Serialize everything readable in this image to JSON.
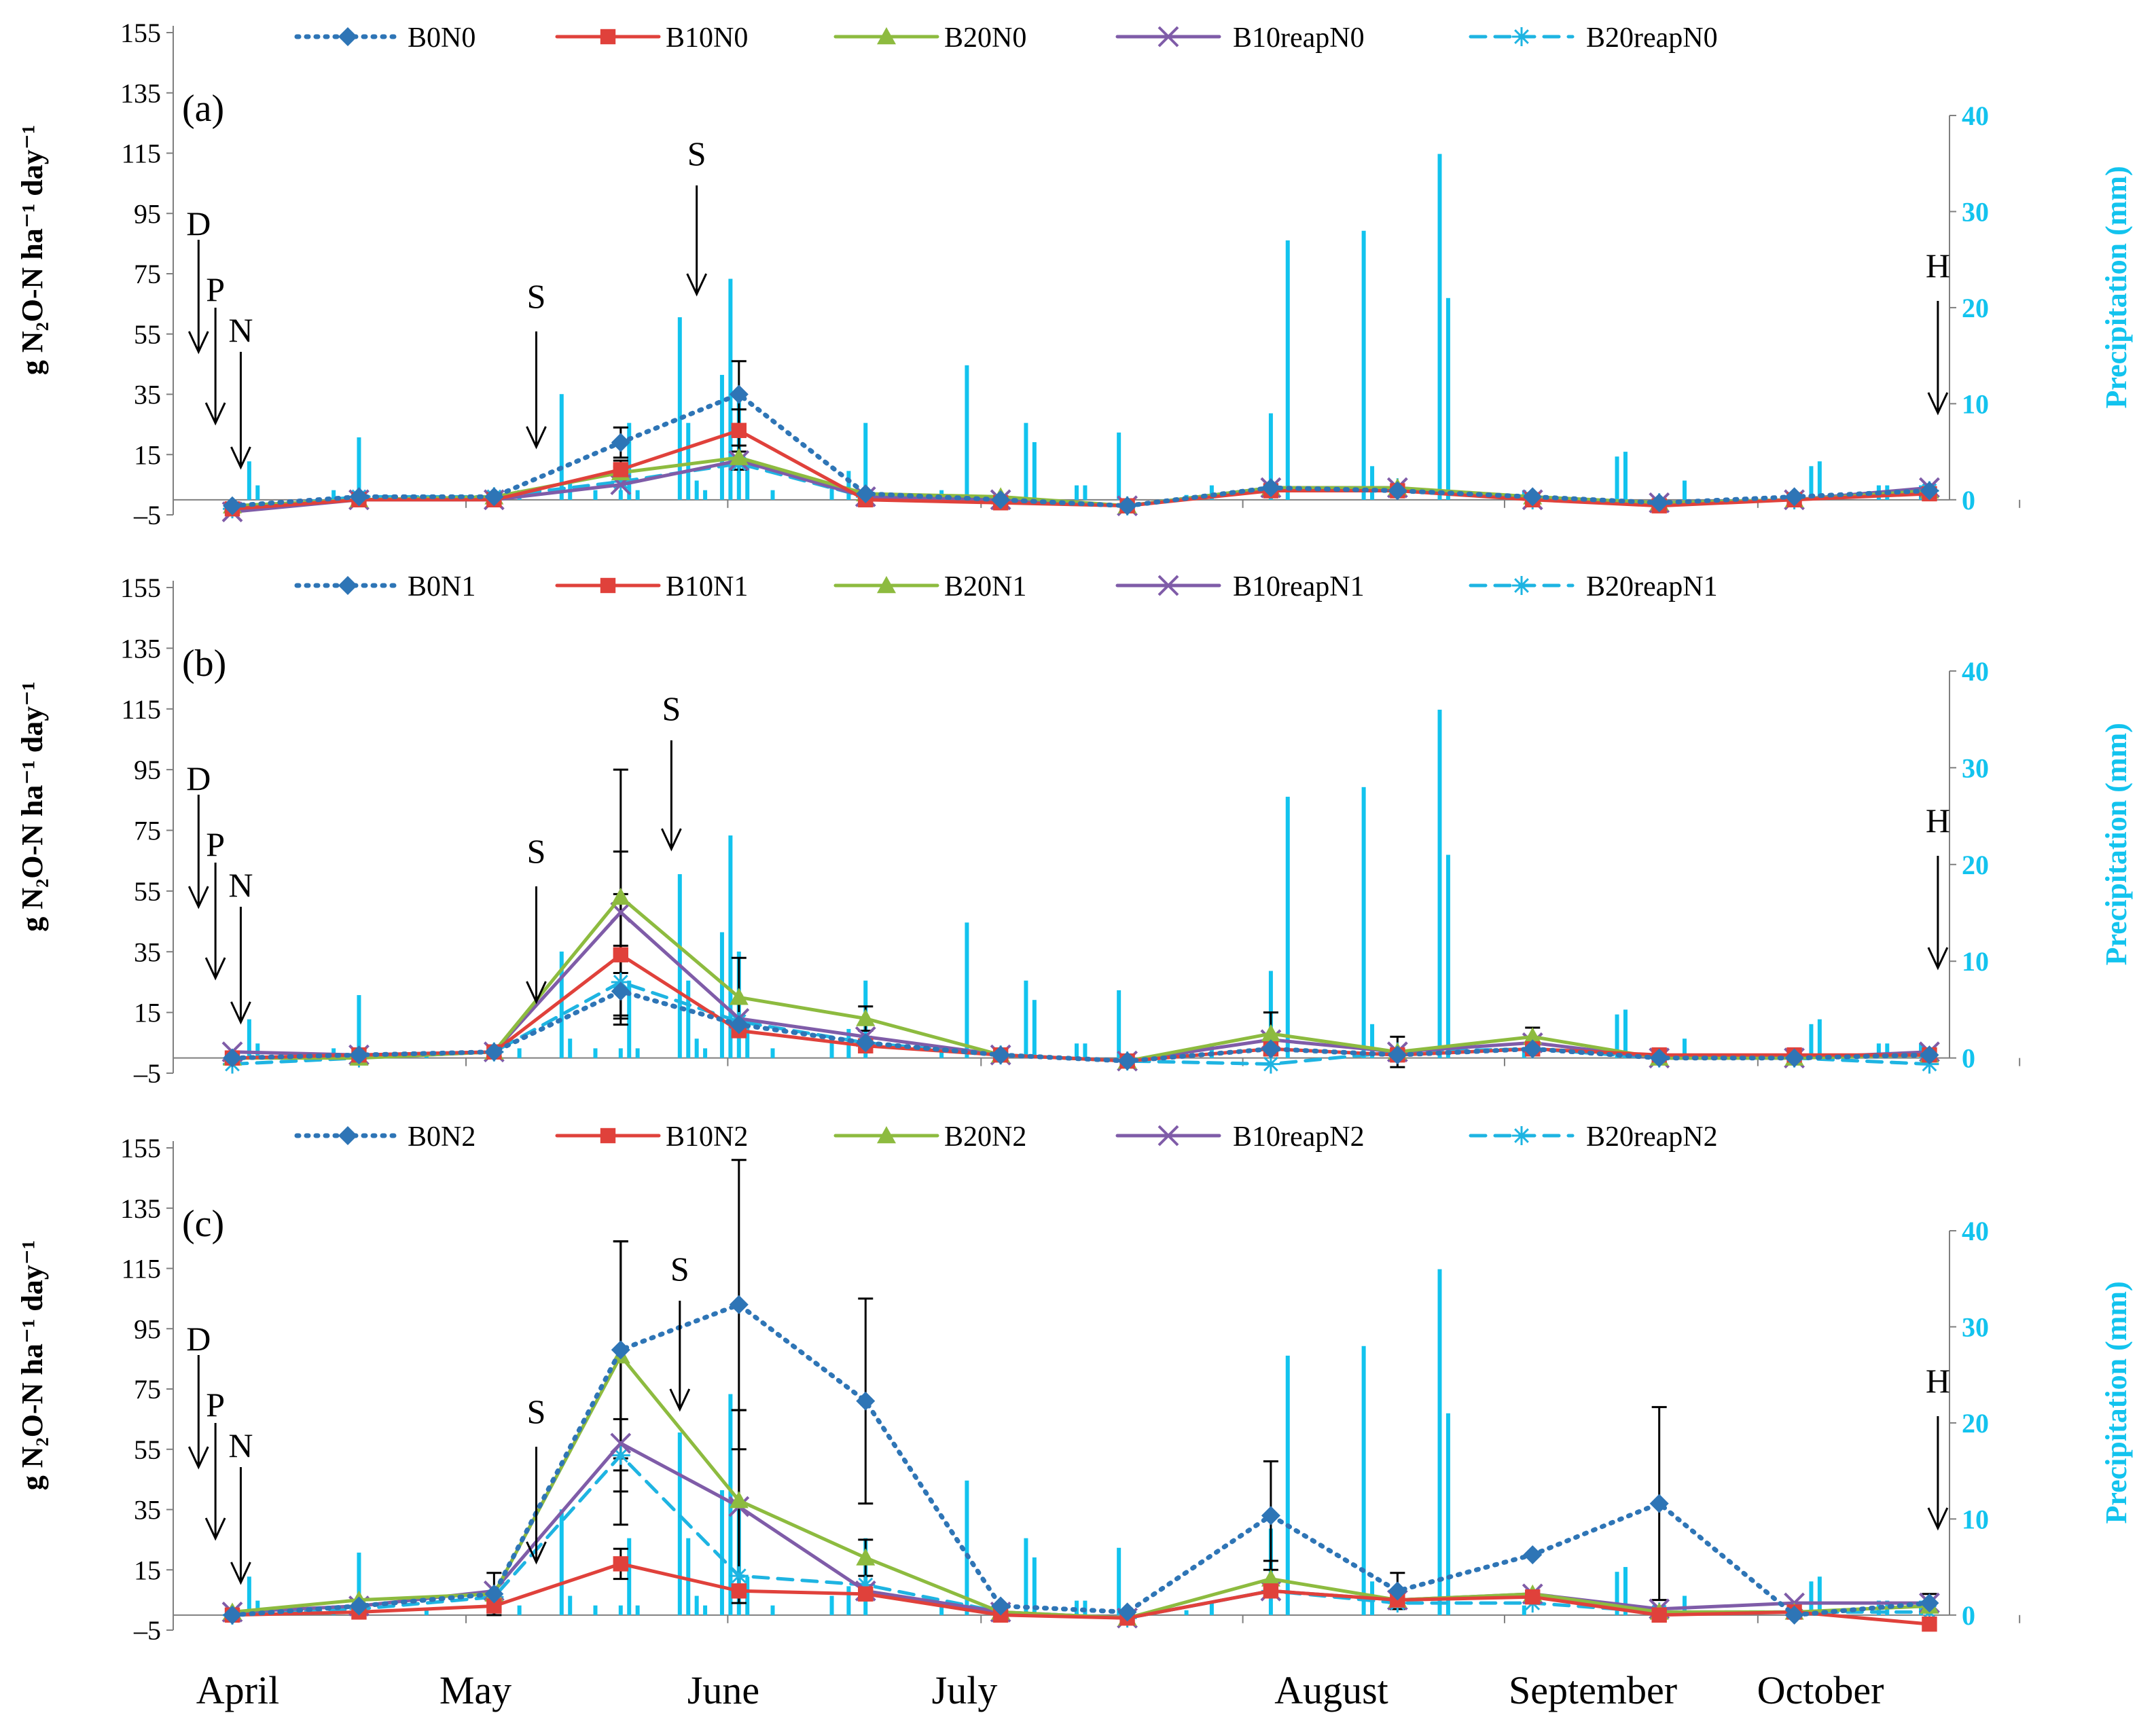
{
  "colors": {
    "B0": "#2E75B6",
    "B10": "#E0413B",
    "B20": "#8DBB3F",
    "B10reap": "#7F5CA8",
    "B20reap": "#1EB4E2",
    "precip": "#12C3EE",
    "error": "#000000"
  },
  "months": [
    "April",
    "May",
    "June",
    "July",
    "August",
    "September",
    "October"
  ],
  "chart_data": [
    {
      "type": "line",
      "panel_label": "(a)",
      "ylabel": "g N₂O-N ha⁻¹ day⁻¹",
      "y2label": "Precipitation (mm)",
      "yticks": [
        "155",
        "135",
        "115",
        "95",
        "75",
        "55",
        "35",
        "15",
        "–5"
      ],
      "y2ticks": [
        "40",
        "30",
        "20",
        "10",
        "0"
      ],
      "ylim": [
        -5,
        155
      ],
      "y2lim": [
        0,
        40
      ],
      "x": [
        "2015-04-03",
        "2015-04-18",
        "2015-05-04",
        "2015-05-19",
        "2015-06-02",
        "2015-06-17",
        "2015-07-03",
        "2015-07-18",
        "2015-08-04",
        "2015-08-19",
        "2015-09-04",
        "2015-09-19",
        "2015-10-05",
        "2015-10-21"
      ],
      "series": [
        {
          "name": "B0N0",
          "key": "B0",
          "marker": "diamond",
          "dash": "dot",
          "values": [
            -2,
            1,
            1,
            19,
            35,
            2,
            0,
            -2,
            4,
            3,
            1,
            -1,
            1,
            3
          ],
          "errors": [
            0,
            0,
            0,
            5,
            11,
            0,
            0,
            0,
            0,
            0,
            0,
            0,
            0,
            0
          ]
        },
        {
          "name": "B10N0",
          "key": "B10",
          "marker": "square",
          "dash": "solid",
          "values": [
            -3,
            0,
            0,
            10,
            23,
            0,
            -1,
            -2,
            3,
            3,
            0,
            -2,
            0,
            2
          ],
          "errors": [
            0,
            0,
            0,
            3,
            7,
            0,
            0,
            0,
            0,
            0,
            0,
            0,
            0,
            0
          ]
        },
        {
          "name": "B20N0",
          "key": "B20",
          "marker": "triangle",
          "dash": "solid",
          "values": [
            -2,
            0,
            1,
            9,
            14,
            2,
            1,
            -2,
            4,
            4,
            1,
            -1,
            0,
            3
          ],
          "errors": [
            0,
            0,
            0,
            2,
            4,
            0,
            0,
            0,
            0,
            0,
            0,
            0,
            0,
            0
          ]
        },
        {
          "name": "B10reapN0",
          "key": "B10reap",
          "marker": "x",
          "dash": "solid",
          "values": [
            -4,
            0,
            0,
            5,
            13,
            1,
            0,
            -2,
            4,
            4,
            0,
            -1,
            0,
            4
          ],
          "errors": [
            0,
            0,
            0,
            0,
            0,
            0,
            0,
            0,
            0,
            0,
            0,
            0,
            0,
            0
          ]
        },
        {
          "name": "B20reapN0",
          "key": "B20reap",
          "marker": "asterisk",
          "dash": "dash",
          "values": [
            -3,
            1,
            1,
            6,
            12,
            1,
            0,
            -2,
            4,
            4,
            0,
            -1,
            0,
            3
          ],
          "errors": [
            0,
            0,
            0,
            0,
            0,
            0,
            0,
            0,
            0,
            0,
            0,
            0,
            0,
            0
          ]
        }
      ],
      "annotations": [
        {
          "label": "D",
          "x": "2015-03-30"
        },
        {
          "label": "P",
          "x": "2015-04-01"
        },
        {
          "label": "N",
          "x": "2015-04-04"
        },
        {
          "label": "S",
          "x": "2015-05-09"
        },
        {
          "label": "S",
          "x": "2015-05-28"
        },
        {
          "label": "H",
          "x": "2015-10-22"
        }
      ]
    },
    {
      "type": "line",
      "panel_label": "(b)",
      "ylabel": "g N₂O-N ha⁻¹ day⁻¹",
      "y2label": "Precipitation (mm)",
      "yticks": [
        "155",
        "135",
        "115",
        "95",
        "75",
        "55",
        "35",
        "15",
        "–5"
      ],
      "y2ticks": [
        "40",
        "30",
        "20",
        "10",
        "0"
      ],
      "ylim": [
        -5,
        155
      ],
      "y2lim": [
        0,
        40
      ],
      "x": [
        "2015-04-03",
        "2015-04-18",
        "2015-05-04",
        "2015-05-19",
        "2015-06-02",
        "2015-06-17",
        "2015-07-03",
        "2015-07-18",
        "2015-08-04",
        "2015-08-19",
        "2015-09-04",
        "2015-09-19",
        "2015-10-05",
        "2015-10-21"
      ],
      "series": [
        {
          "name": "B0N1",
          "key": "B0",
          "marker": "diamond",
          "dash": "dot",
          "values": [
            0,
            1,
            2,
            22,
            11,
            5,
            1,
            -1,
            3,
            1,
            3,
            0,
            0,
            1
          ],
          "errors": [
            0,
            0,
            0,
            0,
            0,
            0,
            0,
            0,
            0,
            0,
            0,
            0,
            0,
            0
          ]
        },
        {
          "name": "B10N1",
          "key": "B10",
          "marker": "square",
          "dash": "solid",
          "values": [
            0,
            1,
            2,
            34,
            9,
            4,
            1,
            -1,
            3,
            1,
            3,
            1,
            1,
            1
          ],
          "errors": [
            0,
            0,
            0,
            20,
            0,
            0,
            0,
            0,
            0,
            0,
            0,
            0,
            0,
            0
          ]
        },
        {
          "name": "B20N1",
          "key": "B20",
          "marker": "triangle",
          "dash": "solid",
          "values": [
            0,
            0,
            2,
            53,
            20,
            13,
            1,
            -1,
            8,
            2,
            7,
            0,
            0,
            1
          ],
          "errors": [
            0,
            0,
            0,
            42,
            13,
            4,
            0,
            0,
            7,
            0,
            3,
            0,
            0,
            0
          ]
        },
        {
          "name": "B10reapN1",
          "key": "B10reap",
          "marker": "x",
          "dash": "solid",
          "values": [
            2,
            1,
            2,
            48,
            13,
            7,
            1,
            -1,
            6,
            2,
            5,
            0,
            0,
            2
          ],
          "errors": [
            0,
            0,
            0,
            20,
            0,
            0,
            0,
            0,
            0,
            0,
            0,
            0,
            0,
            0
          ]
        },
        {
          "name": "B20reapN1",
          "key": "B20reap",
          "marker": "asterisk",
          "dash": "dash",
          "values": [
            -2,
            0,
            2,
            25,
            12,
            5,
            1,
            -1,
            -2,
            2,
            3,
            0,
            0,
            -2
          ],
          "errors": [
            0,
            0,
            0,
            12,
            0,
            0,
            0,
            0,
            0,
            5,
            0,
            0,
            0,
            0
          ]
        }
      ],
      "annotations": [
        {
          "label": "D",
          "x": "2015-03-30"
        },
        {
          "label": "P",
          "x": "2015-04-01"
        },
        {
          "label": "N",
          "x": "2015-04-04"
        },
        {
          "label": "S",
          "x": "2015-05-09"
        },
        {
          "label": "S",
          "x": "2015-05-25"
        },
        {
          "label": "H",
          "x": "2015-10-22"
        }
      ]
    },
    {
      "type": "line",
      "panel_label": "(c)",
      "ylabel": "g N₂O-N ha⁻¹ day⁻¹",
      "y2label": "Precipitation (mm)",
      "yticks": [
        "155",
        "135",
        "115",
        "95",
        "75",
        "55",
        "35",
        "15",
        "–5"
      ],
      "y2ticks": [
        "40",
        "30",
        "20",
        "10",
        "0"
      ],
      "ylim": [
        -5,
        155
      ],
      "y2lim": [
        0,
        40
      ],
      "x": [
        "2015-04-03",
        "2015-04-18",
        "2015-05-04",
        "2015-05-19",
        "2015-06-02",
        "2015-06-17",
        "2015-07-03",
        "2015-07-18",
        "2015-08-04",
        "2015-08-19",
        "2015-09-04",
        "2015-09-19",
        "2015-10-05",
        "2015-10-21"
      ],
      "series": [
        {
          "name": "B0N2",
          "key": "B0",
          "marker": "diamond",
          "dash": "dot",
          "values": [
            0,
            3,
            7,
            88,
            103,
            71,
            3,
            1,
            33,
            8,
            20,
            37,
            0,
            4
          ],
          "errors": [
            0,
            0,
            0,
            36,
            48,
            34,
            0,
            0,
            18,
            6,
            0,
            32,
            0,
            3
          ]
        },
        {
          "name": "B10N2",
          "key": "B10",
          "marker": "square",
          "dash": "solid",
          "values": [
            0,
            1,
            3,
            17,
            8,
            7,
            0,
            -1,
            8,
            5,
            6,
            0,
            1,
            -3
          ],
          "errors": [
            0,
            0,
            0,
            5,
            0,
            0,
            0,
            0,
            0,
            0,
            0,
            0,
            0,
            0
          ]
        },
        {
          "name": "B20N2",
          "key": "B20",
          "marker": "triangle",
          "dash": "solid",
          "values": [
            1,
            5,
            7,
            86,
            38,
            19,
            1,
            -1,
            12,
            5,
            7,
            1,
            1,
            3
          ],
          "errors": [
            0,
            0,
            7,
            38,
            30,
            6,
            0,
            0,
            6,
            0,
            0,
            0,
            0,
            0
          ]
        },
        {
          "name": "B10reapN2",
          "key": "B10reap",
          "marker": "x",
          "dash": "solid",
          "values": [
            1,
            3,
            8,
            57,
            36,
            8,
            1,
            -1,
            8,
            5,
            7,
            2,
            4,
            4
          ],
          "errors": [
            0,
            0,
            0,
            27,
            32,
            0,
            0,
            0,
            0,
            0,
            0,
            0,
            0,
            0
          ]
        },
        {
          "name": "B20reapN2",
          "key": "B20reap",
          "marker": "asterisk",
          "dash": "dash",
          "values": [
            0,
            2,
            6,
            53,
            13,
            10,
            1,
            -1,
            8,
            4,
            4,
            1,
            1,
            1
          ],
          "errors": [
            0,
            0,
            0,
            12,
            0,
            0,
            0,
            0,
            0,
            0,
            0,
            0,
            0,
            0
          ]
        }
      ],
      "annotations": [
        {
          "label": "D",
          "x": "2015-03-30"
        },
        {
          "label": "P",
          "x": "2015-04-01"
        },
        {
          "label": "N",
          "x": "2015-04-04"
        },
        {
          "label": "S",
          "x": "2015-05-09"
        },
        {
          "label": "S",
          "x": "2015-05-26"
        },
        {
          "label": "H",
          "x": "2015-10-22"
        }
      ]
    }
  ],
  "precipitation": [
    [
      "2015-04-05",
      4
    ],
    [
      "2015-04-06",
      1.5
    ],
    [
      "2015-04-15",
      1
    ],
    [
      "2015-04-18",
      6.5
    ],
    [
      "2015-04-26",
      0.5
    ],
    [
      "2015-05-04",
      1
    ],
    [
      "2015-05-07",
      1
    ],
    [
      "2015-05-12",
      11
    ],
    [
      "2015-05-13",
      2
    ],
    [
      "2015-05-16",
      1
    ],
    [
      "2015-05-19",
      1
    ],
    [
      "2015-05-20",
      8
    ],
    [
      "2015-05-21",
      1
    ],
    [
      "2015-05-26",
      19
    ],
    [
      "2015-05-27",
      8
    ],
    [
      "2015-05-28",
      2
    ],
    [
      "2015-05-29",
      1
    ],
    [
      "2015-05-31",
      13
    ],
    [
      "2015-06-01",
      23
    ],
    [
      "2015-06-02",
      11
    ],
    [
      "2015-06-03",
      4
    ],
    [
      "2015-06-06",
      1
    ],
    [
      "2015-06-13",
      2
    ],
    [
      "2015-06-15",
      3
    ],
    [
      "2015-06-17",
      8
    ],
    [
      "2015-06-26",
      1
    ],
    [
      "2015-06-29",
      14
    ],
    [
      "2015-07-06",
      8
    ],
    [
      "2015-07-07",
      6
    ],
    [
      "2015-07-12",
      1.5
    ],
    [
      "2015-07-13",
      1.5
    ],
    [
      "2015-07-17",
      7
    ],
    [
      "2015-07-25",
      0.5
    ],
    [
      "2015-07-28",
      1.5
    ],
    [
      "2015-08-04",
      9
    ],
    [
      "2015-08-06",
      27
    ],
    [
      "2015-08-15",
      28
    ],
    [
      "2015-08-16",
      3.5
    ],
    [
      "2015-08-24",
      36
    ],
    [
      "2015-08-25",
      21
    ],
    [
      "2015-09-03",
      1
    ],
    [
      "2015-09-14",
      4.5
    ],
    [
      "2015-09-15",
      5
    ],
    [
      "2015-09-22",
      2
    ],
    [
      "2015-10-07",
      3.5
    ],
    [
      "2015-10-08",
      4
    ],
    [
      "2015-10-15",
      1.5
    ],
    [
      "2015-10-16",
      1.5
    ],
    [
      "2015-10-20",
      1.5
    ]
  ]
}
